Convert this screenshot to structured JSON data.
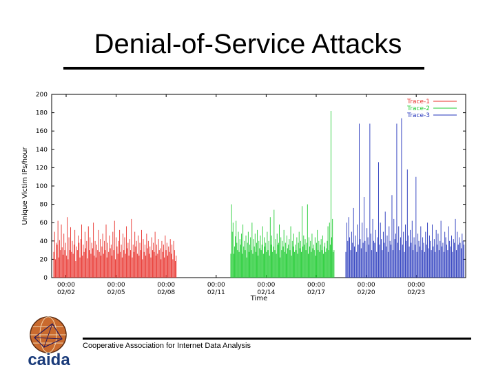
{
  "slide": {
    "title": "Denial-of-Service Attacks",
    "footer": "Cooperative Association for Internet Data Analysis",
    "logo_text": "caida"
  },
  "colors": {
    "trace1": "#e8302a",
    "trace2": "#22cc33",
    "trace3": "#2233bb"
  },
  "chart_data": {
    "type": "bar",
    "xlabel": "Time",
    "ylabel": "Unique Victim IPs/hour",
    "ylim": [
      0,
      200
    ],
    "yticks": [
      0,
      20,
      40,
      60,
      80,
      100,
      120,
      140,
      160,
      180,
      200
    ],
    "xticks": [
      {
        "time": "00:00",
        "date": "02/02"
      },
      {
        "time": "00:00",
        "date": "02/05"
      },
      {
        "time": "00:00",
        "date": "02/08"
      },
      {
        "time": "00:00",
        "date": "02/11"
      },
      {
        "time": "00:00",
        "date": "02/14"
      },
      {
        "time": "00:00",
        "date": "02/17"
      },
      {
        "time": "00:00",
        "date": "02/20"
      },
      {
        "time": "00:00",
        "date": "02/23"
      }
    ],
    "legend_position": "top-right",
    "series": [
      {
        "name": "Trace-1",
        "color": "#e8302a",
        "start_date": "02/01",
        "values": [
          28,
          50,
          20,
          38,
          36,
          62,
          22,
          41,
          30,
          58,
          33,
          25,
          48,
          30,
          38,
          24,
          66,
          20,
          44,
          30,
          55,
          28,
          40,
          26,
          36,
          52,
          18,
          34,
          30,
          46,
          38,
          22,
          42,
          58,
          24,
          36,
          28,
          50,
          32,
          40,
          21,
          56,
          30,
          44,
          26,
          38,
          32,
          60,
          24,
          40,
          22,
          36,
          30,
          52,
          28,
          42,
          24,
          34,
          48,
          26,
          40,
          30,
          58,
          22,
          38,
          28,
          46,
          32,
          36,
          24,
          50,
          30,
          62,
          20,
          44,
          34,
          26,
          40,
          52,
          28,
          36,
          22,
          48,
          30,
          44,
          26,
          56,
          32,
          38,
          24,
          42,
          30,
          64,
          22,
          36,
          28,
          50,
          34,
          40,
          26,
          46,
          24,
          38,
          30,
          52,
          20,
          42,
          28,
          36,
          24,
          48,
          32,
          40,
          26,
          34,
          22,
          44,
          30,
          38,
          28,
          50,
          24,
          36,
          26,
          42,
          30,
          32,
          20,
          40,
          28,
          36,
          22,
          46,
          30,
          38,
          24,
          34,
          28,
          42,
          26,
          36,
          20,
          40,
          30,
          18,
          24
        ]
      },
      {
        "name": "Trace-2",
        "color": "#22cc33",
        "start_date": "02/12",
        "values": [
          26,
          80,
          50,
          60,
          26,
          34,
          45,
          62,
          38,
          30,
          50,
          28,
          42,
          36,
          48,
          26,
          58,
          34,
          40,
          30,
          46,
          22,
          38,
          50,
          28,
          36,
          44,
          30,
          60,
          26,
          42,
          34,
          48,
          28,
          38,
          52,
          24,
          40,
          32,
          46,
          30,
          36,
          56,
          26,
          44,
          34,
          38,
          28,
          50,
          30,
          40,
          24,
          66,
          36,
          46,
          28,
          34,
          74,
          30,
          42,
          26,
          48,
          36,
          38,
          58,
          22,
          44,
          30,
          40,
          34,
          52,
          28,
          38,
          26,
          46,
          32,
          36,
          42,
          30,
          56,
          24,
          40,
          34,
          48,
          28,
          36,
          30,
          44,
          26,
          38,
          50,
          32,
          40,
          28,
          78,
          34,
          46,
          36,
          42,
          30,
          38,
          80,
          26,
          44,
          34,
          40,
          28,
          48,
          32,
          36,
          30,
          44,
          24,
          38,
          52,
          30,
          40,
          28,
          36,
          42,
          30,
          46,
          26,
          34,
          38,
          28,
          32,
          40,
          56,
          30,
          60,
          36,
          182,
          44,
          64,
          28,
          30
        ]
      },
      {
        "name": "Trace-3",
        "color": "#2233bb",
        "start_date": "02/18",
        "values": [
          28,
          60,
          40,
          66,
          44,
          30,
          50,
          38,
          76,
          34,
          46,
          28,
          58,
          36,
          168,
          42,
          32,
          60,
          38,
          88,
          40,
          28,
          54,
          44,
          36,
          168,
          48,
          30,
          64,
          40,
          38,
          52,
          28,
          44,
          126,
          36,
          60,
          42,
          30,
          50,
          38,
          72,
          34,
          46,
          28,
          56,
          40,
          36,
          90,
          30,
          64,
          42,
          48,
          168,
          38,
          56,
          30,
          44,
          174,
          36,
          50,
          28,
          58,
          40,
          118,
          46,
          34,
          52,
          38,
          62,
          30,
          44,
          36,
          110,
          28,
          48,
          40,
          34,
          56,
          30,
          44,
          38,
          28,
          50,
          36,
          60,
          32,
          46,
          40,
          30,
          58,
          34,
          42,
          28,
          52,
          36,
          48,
          30,
          40,
          62,
          34,
          38,
          28,
          50,
          44,
          36,
          30,
          56,
          40,
          34,
          46,
          28,
          42,
          38,
          64,
          30,
          50,
          36,
          44,
          38,
          32,
          48,
          40,
          36
        ]
      }
    ]
  }
}
